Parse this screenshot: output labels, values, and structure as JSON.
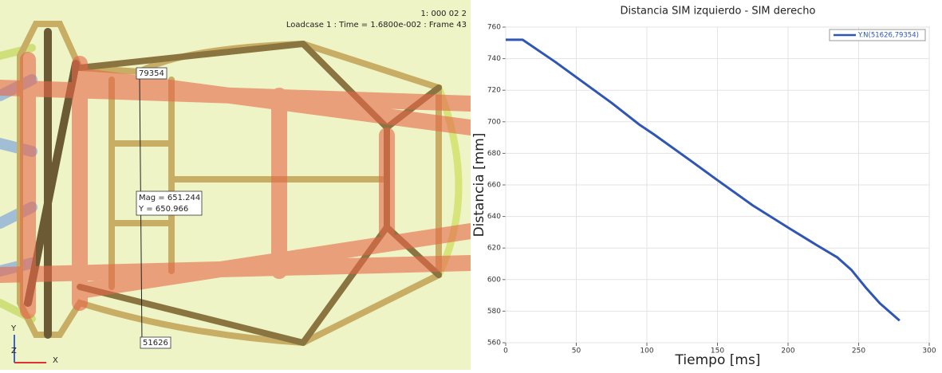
{
  "viewport": {
    "header": "1: 000 02 2",
    "loadcase": "Loadcase 1 : Time = 1.6800e-002 : Frame 43",
    "node_top": "79354",
    "measure": [
      "Mag = 651.244",
      "Y = 650.966"
    ],
    "node_bottom": "51626",
    "axes": [
      "Y",
      "Z",
      "X"
    ]
  },
  "chart_data": {
    "type": "line",
    "title": "Distancia SIM izquierdo - SIM derecho",
    "x_label": "Tiempo [ms]",
    "y_label": "Distancia [mm]",
    "x": [
      0,
      12,
      35,
      55,
      75,
      95,
      105,
      130,
      150,
      175,
      200,
      220,
      235,
      245,
      255,
      265,
      279
    ],
    "series": [
      {
        "name": "Y.N(51626,79354)",
        "color": "#2f55b5",
        "values": [
          752,
          752,
          738,
          725,
          712,
          698,
          692,
          676,
          663,
          647,
          633,
          622,
          614,
          606,
          595,
          585,
          574
        ]
      }
    ],
    "xlim": [
      0,
      300
    ],
    "xticks": [
      0,
      50,
      100,
      150,
      200,
      250,
      300
    ],
    "ylim": [
      560,
      760
    ],
    "yticks": [
      560,
      580,
      600,
      620,
      640,
      660,
      680,
      700,
      720,
      740,
      760
    ],
    "grid": true,
    "legend": "upper right"
  }
}
